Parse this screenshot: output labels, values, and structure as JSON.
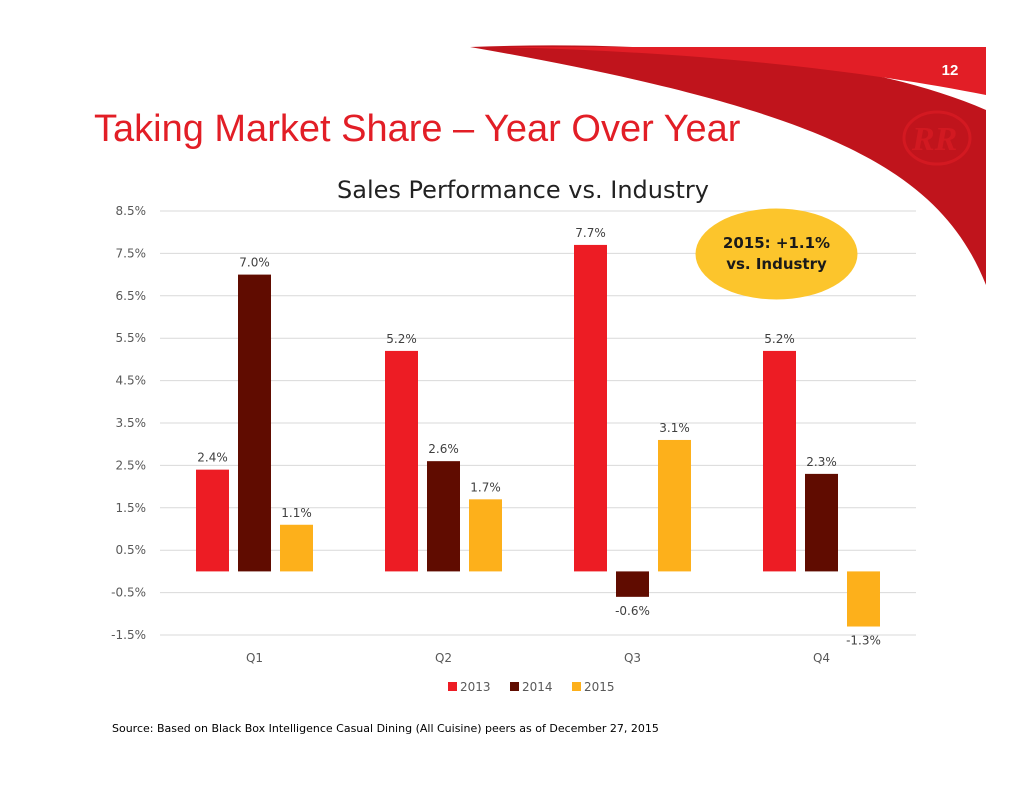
{
  "slide": {
    "title": "Taking Market Share – Year Over Year",
    "page_number": "12",
    "source": "Source: Based on Black Box Intelligence Casual Dining (All Cuisine) peers as of December 27, 2015",
    "callout": {
      "line1": "2015: +1.1%",
      "line2": "vs. Industry",
      "color": "#fcc52c"
    },
    "brand_colors": {
      "red": "#e21e26",
      "dark_red": "#c0141c"
    },
    "logo": "R R monogram"
  },
  "chart_data": {
    "type": "bar",
    "title": "Sales Performance vs. Industry",
    "xlabel": "",
    "ylabel": "",
    "categories": [
      "Q1",
      "Q2",
      "Q3",
      "Q4"
    ],
    "series": [
      {
        "name": "2013",
        "color": "#ed1c24",
        "values": [
          2.4,
          5.2,
          7.7,
          5.2
        ],
        "labels": [
          "2.4%",
          "5.2%",
          "7.7%",
          "5.2%"
        ]
      },
      {
        "name": "2014",
        "color": "#600c00",
        "values": [
          7.0,
          2.6,
          -0.6,
          2.3
        ],
        "labels": [
          "7.0%",
          "2.6%",
          "-0.6%",
          "2.3%"
        ]
      },
      {
        "name": "2015",
        "color": "#fdb01b",
        "values": [
          1.1,
          1.7,
          3.1,
          -1.3
        ],
        "labels": [
          "1.1%",
          "1.7%",
          "3.1%",
          "-1.3%"
        ]
      }
    ],
    "y_ticks": [
      {
        "value": 8.5,
        "label": "8.5%"
      },
      {
        "value": 7.5,
        "label": "7.5%"
      },
      {
        "value": 6.5,
        "label": "6.5%"
      },
      {
        "value": 5.5,
        "label": "5.5%"
      },
      {
        "value": 4.5,
        "label": "4.5%"
      },
      {
        "value": 3.5,
        "label": "3.5%"
      },
      {
        "value": 2.5,
        "label": "2.5%"
      },
      {
        "value": 1.5,
        "label": "1.5%"
      },
      {
        "value": 0.5,
        "label": "0.5%"
      },
      {
        "value": -0.5,
        "label": "-0.5%"
      },
      {
        "value": -1.5,
        "label": "-1.5%"
      }
    ],
    "ylim": [
      -1.5,
      8.5
    ],
    "grid": true,
    "legend": "bottom"
  }
}
